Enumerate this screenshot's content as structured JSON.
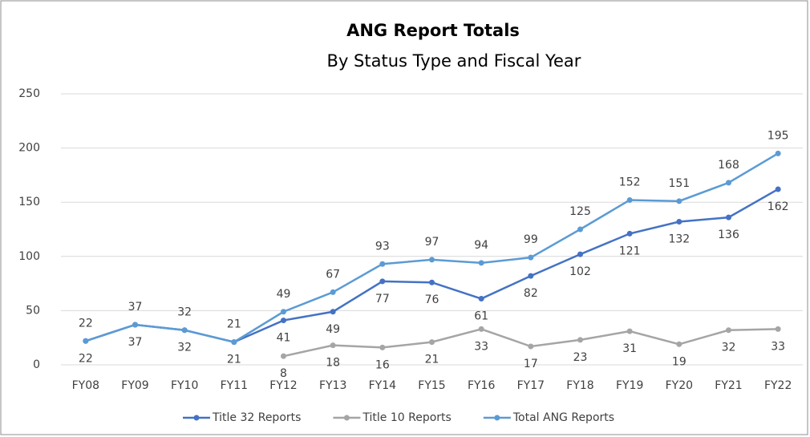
{
  "chart_data": {
    "type": "line",
    "title": "ANG Report Totals",
    "subtitle": "By Status Type and Fiscal Year",
    "categories": [
      "FY08",
      "FY09",
      "FY10",
      "FY11",
      "FY12",
      "FY13",
      "FY14",
      "FY15",
      "FY16",
      "FY17",
      "FY18",
      "FY19",
      "FY20",
      "FY21",
      "FY22"
    ],
    "series": [
      {
        "name": "Title 32 Reports",
        "color": "#4472c4",
        "label_position": "below",
        "values": [
          22,
          37,
          32,
          21,
          41,
          49,
          77,
          76,
          61,
          82,
          102,
          121,
          132,
          136,
          162
        ]
      },
      {
        "name": "Title 10 Reports",
        "color": "#a5a5a5",
        "label_position": "below",
        "values": [
          null,
          null,
          null,
          null,
          8,
          18,
          16,
          21,
          33,
          17,
          23,
          31,
          19,
          32,
          33
        ]
      },
      {
        "name": "Total ANG Reports",
        "color": "#5b9bd5",
        "label_position": "above",
        "values": [
          22,
          37,
          32,
          21,
          49,
          67,
          93,
          97,
          94,
          99,
          125,
          152,
          151,
          168,
          195
        ]
      }
    ],
    "ylim": [
      0,
      250
    ],
    "yticks": [
      0,
      50,
      100,
      150,
      200,
      250
    ],
    "grid": true,
    "legend": "bottom"
  }
}
